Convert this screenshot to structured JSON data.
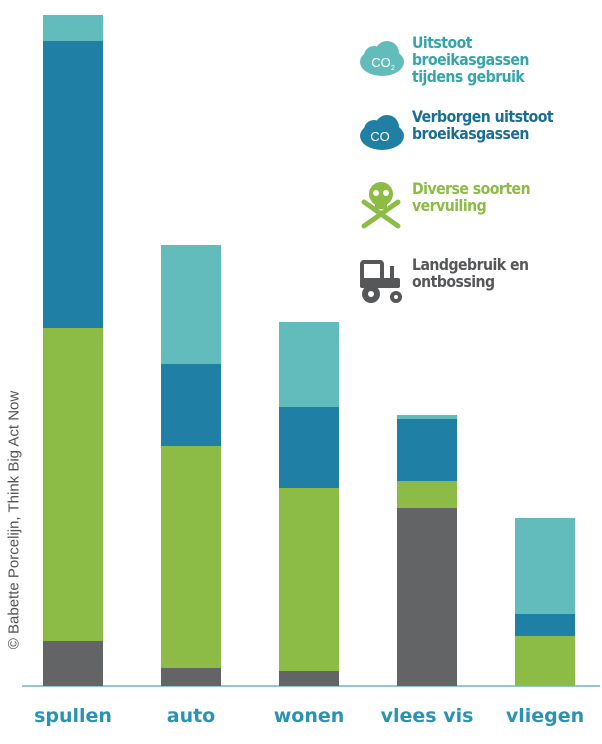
{
  "chart_data": {
    "type": "bar",
    "stacked": true,
    "categories": [
      "spullen",
      "auto",
      "wonen",
      "vlees vis",
      "vliegen"
    ],
    "series": [
      {
        "name": "Landgebruik en ontbossing",
        "color": "#636466",
        "values": [
          45,
          18,
          15,
          178,
          0
        ]
      },
      {
        "name": "Diverse soorten vervuiling",
        "color": "#8cbb46",
        "values": [
          313,
          222,
          183,
          27,
          50
        ]
      },
      {
        "name": "Verborgen uitstoot broeikasgassen",
        "color": "#1f7fa5",
        "values": [
          287,
          82,
          81,
          62,
          22
        ]
      },
      {
        "name": "Uitstoot broeikasgassen tijdens gebruik",
        "color": "#62bcbc",
        "values": [
          26,
          119,
          85,
          4,
          96
        ]
      }
    ],
    "ylim": [
      0,
      672
    ],
    "grid": false,
    "legend": "top-right",
    "title": "",
    "xlabel": "",
    "ylabel": ""
  },
  "legend_items": [
    {
      "text": "Uitstoot broeikasgassen tijdens gebruik",
      "color": "#36a5aa",
      "icon": "co2-cloud-light-icon"
    },
    {
      "text": "Verborgen uitstoot broeikasgassen",
      "color": "#1a6e96",
      "icon": "co2-cloud-dark-icon"
    },
    {
      "text": "Diverse soorten vervuiling",
      "color": "#8cbb46",
      "icon": "skull-crossbones-icon"
    },
    {
      "text": "Landgebruik en ontbossing",
      "color": "#555759",
      "icon": "tractor-icon"
    }
  ],
  "credit": "© Babette Porcelijn, Think Big Act Now",
  "colors": {
    "axis": "#8fc9c9",
    "label": "#2a93b5"
  }
}
